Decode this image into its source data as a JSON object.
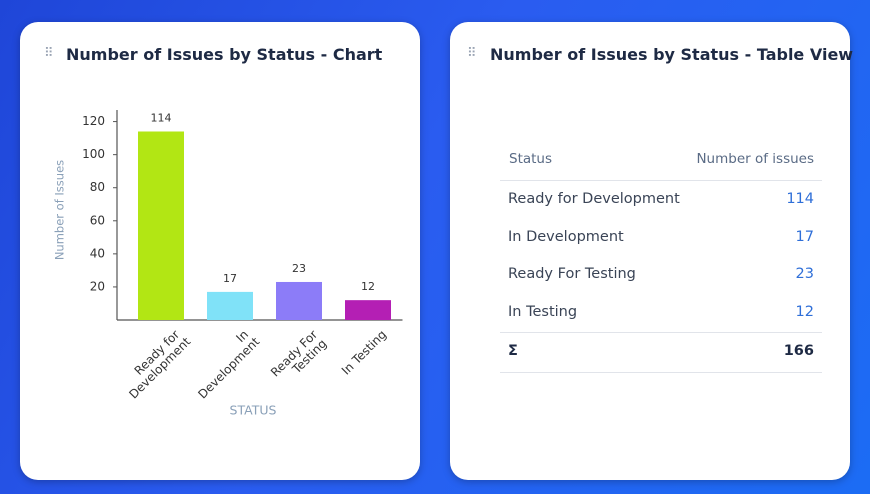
{
  "chart_data": {
    "type": "bar",
    "title": "Number of Issues by Status - Chart",
    "y_label": "Number of Issues",
    "x_label": "STATUS",
    "categories": [
      "Ready for Development",
      "In Development",
      "Ready For Testing",
      "In Testing"
    ],
    "values": [
      114,
      17,
      23,
      12
    ],
    "colors": [
      "#b2e614",
      "#80e2f8",
      "#8c7cf8",
      "#b41fb4"
    ],
    "ylim": [
      0,
      127
    ],
    "yticks": [
      20,
      40,
      60,
      80,
      100,
      120
    ]
  },
  "table": {
    "title": "Number of Issues by Status - Table View",
    "columns": [
      "Status",
      "Number of issues"
    ],
    "rows": [
      [
        "Ready for Development",
        114
      ],
      [
        "In Development",
        17
      ],
      [
        "Ready For Testing",
        23
      ],
      [
        "In Testing",
        12
      ]
    ],
    "total": {
      "label": "Σ",
      "value": 166
    }
  }
}
